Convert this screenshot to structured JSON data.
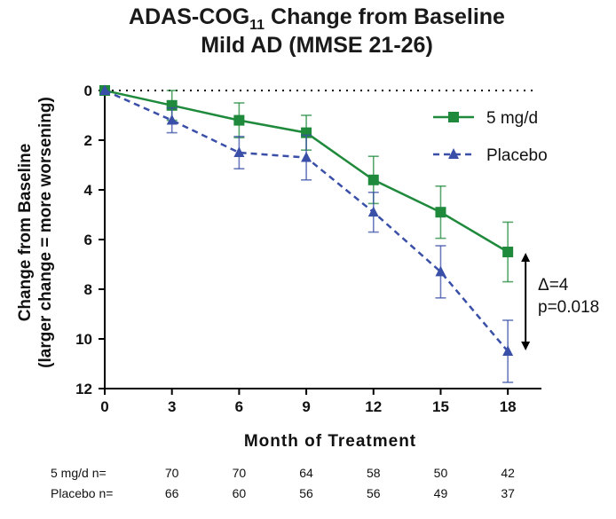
{
  "title_main": "ADAS-COG",
  "title_sub": "11",
  "title_rest": " Change from  Baseline",
  "title_line2": "Mild AD  (MMSE 21-26)",
  "chart_data": {
    "type": "line",
    "x": [
      0,
      3,
      6,
      9,
      12,
      15,
      18
    ],
    "xlabel": "Month of Treatment",
    "ylabel_line1": "Change from Baseline",
    "ylabel_line2": "(larger change = more worsening)",
    "xlim": [
      0,
      19.5
    ],
    "ylim": [
      0,
      12
    ],
    "y_inverted": true,
    "x_ticks": [
      "0",
      "3",
      "6",
      "9",
      "12",
      "15",
      "18"
    ],
    "y_ticks": [
      "0",
      "2",
      "4",
      "6",
      "8",
      "10",
      "12"
    ],
    "legend_position": "top-right",
    "series": [
      {
        "name": "5 mg/d",
        "color": "#1f8a3c",
        "marker": "square",
        "line_style": "solid",
        "values": [
          0,
          0.6,
          1.2,
          1.7,
          3.6,
          4.9,
          6.5
        ],
        "error": [
          0,
          0.6,
          0.7,
          0.7,
          0.95,
          1.05,
          1.2
        ]
      },
      {
        "name": "Placebo",
        "color": "#3a4fa8",
        "marker": "triangle",
        "line_style": "dashed",
        "values": [
          0,
          1.2,
          2.5,
          2.7,
          4.9,
          7.3,
          10.5
        ],
        "error": [
          0,
          0.5,
          0.65,
          0.9,
          0.8,
          1.05,
          1.25
        ]
      }
    ],
    "annotation": {
      "delta_label": "Δ=4",
      "p_label": "p=0.018"
    }
  },
  "n_table": {
    "rows": [
      {
        "label": "5 mg/d n=",
        "values": [
          "70",
          "70",
          "64",
          "58",
          "50",
          "42"
        ]
      },
      {
        "label": "Placebo n=",
        "values": [
          "66",
          "60",
          "56",
          "56",
          "49",
          "37"
        ]
      }
    ]
  }
}
